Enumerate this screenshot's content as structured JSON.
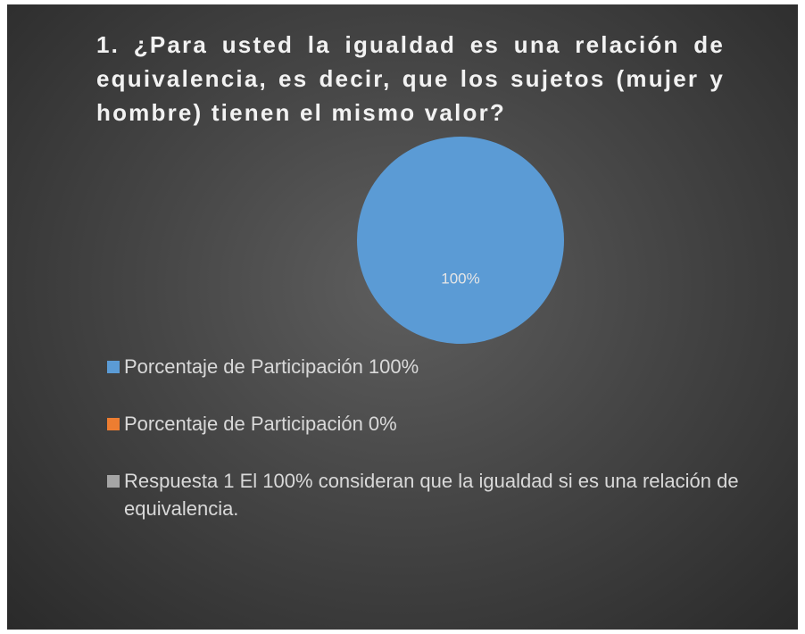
{
  "chart_data": {
    "type": "pie",
    "title": "1.   ¿Para usted la igualdad es una relación de equivalencia, es decir, que los sujetos (mujer y hombre) tienen el mismo valor?",
    "categories": [
      "Porcentaje de Participación 100%",
      "Porcentaje de Participación 0%",
      "Respuesta 1 El 100% consideran que la igualdad si es una relación de equivalencia."
    ],
    "values": [
      100,
      0,
      0
    ],
    "value_labels": [
      "100%",
      null,
      null
    ],
    "colors": [
      "#5b9bd5",
      "#ed7d31",
      "#a5a5a5"
    ],
    "legend": "bottom"
  }
}
